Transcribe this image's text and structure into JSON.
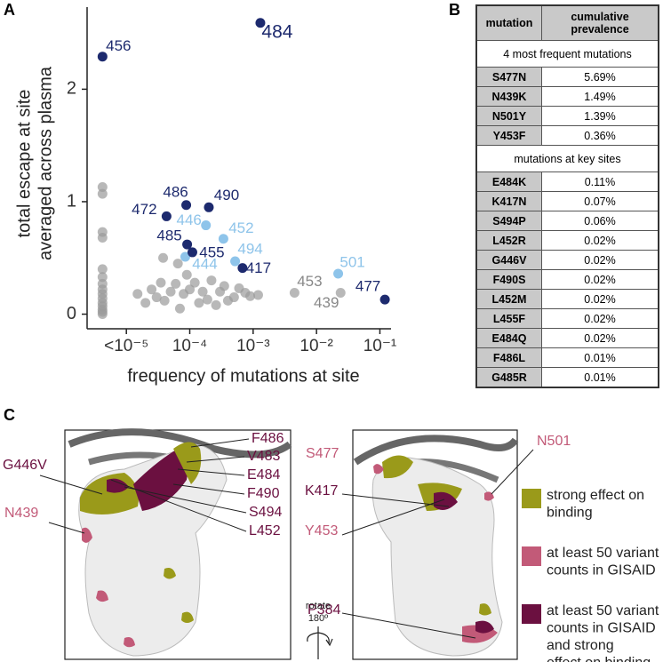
{
  "panel_labels": [
    "A",
    "B",
    "C"
  ],
  "chart_data": {
    "type": "scatter",
    "xlabel": "frequency of mutations at site",
    "ylabel": [
      "total escape at site",
      "averaged across plasma"
    ],
    "xscale": "log",
    "xlim": [
      2.4e-06,
      0.15
    ],
    "ylim": [
      -0.13,
      2.73
    ],
    "xticks": [
      {
        "value": 1e-05,
        "label": "<10⁻⁵"
      },
      {
        "value": 0.0001,
        "label": "10⁻⁴"
      },
      {
        "value": 0.001,
        "label": "10⁻³"
      },
      {
        "value": 0.01,
        "label": "10⁻²"
      },
      {
        "value": 0.1,
        "label": "10⁻¹"
      }
    ],
    "yticks": [
      0,
      1,
      2
    ],
    "series": [
      {
        "color": "#9a9a9a",
        "x": [
          0.0045,
          0.024,
          4.2e-06,
          4.2e-06,
          4.2e-06,
          4.2e-06,
          4.2e-06,
          4.2e-06,
          4.2e-06,
          4.2e-06,
          4.2e-06,
          4.2e-06,
          4.2e-06,
          4.2e-06,
          4.2e-06,
          4.2e-06,
          4.2e-06,
          1.5e-05,
          2e-05,
          2.5e-05,
          3e-05,
          3.5e-05,
          3.8e-05,
          4e-05,
          5e-05,
          6e-05,
          6.5e-05,
          7e-05,
          8e-05,
          9e-05,
          0.0001,
          0.00012,
          0.00014,
          0.00016,
          0.00019,
          0.00022,
          0.00026,
          0.0003,
          0.00035,
          0.0004,
          0.0005,
          0.0006,
          0.00075,
          0.0009,
          0.0012
        ],
        "values": [
          0.19,
          0.19,
          1.13,
          1.07,
          0.73,
          0.68,
          0.4,
          0.33,
          0.27,
          0.22,
          0.18,
          0.14,
          0.1,
          0.07,
          0.04,
          0.02,
          0.0,
          0.18,
          0.1,
          0.22,
          0.15,
          0.28,
          0.5,
          0.12,
          0.2,
          0.27,
          0.45,
          0.05,
          0.18,
          0.35,
          0.22,
          0.28,
          0.1,
          0.2,
          0.13,
          0.3,
          0.08,
          0.2,
          0.25,
          0.12,
          0.15,
          0.23,
          0.19,
          0.16,
          0.17
        ],
        "labels": [
          "453",
          "439",
          null,
          null,
          null,
          null,
          null,
          null,
          null,
          null,
          null,
          null,
          null,
          null,
          null,
          null,
          null,
          null,
          null,
          null,
          null,
          null,
          null,
          null,
          null,
          null,
          null,
          null,
          null,
          null,
          null,
          null,
          null,
          null,
          null,
          null,
          null,
          null,
          null,
          null,
          null,
          null,
          null,
          null,
          null
        ]
      },
      {
        "color": "#8ec4ea",
        "x": [
          0.00018,
          0.00034,
          8.5e-05,
          0.00052,
          0.022
        ],
        "values": [
          0.79,
          0.67,
          0.51,
          0.47,
          0.36
        ],
        "labels": [
          "446",
          "452",
          "444",
          "494",
          "501"
        ]
      },
      {
        "color": "#1d2a6e",
        "x": [
          4.2e-06,
          0.0013,
          8.8e-05,
          0.0002,
          4.3e-05,
          9.1e-05,
          0.00011,
          0.00068,
          0.12
        ],
        "values": [
          2.29,
          2.59,
          0.97,
          0.95,
          0.87,
          0.62,
          0.55,
          0.41,
          0.13
        ],
        "labels": [
          "456",
          "484",
          "486",
          "490",
          "472",
          "485",
          "455",
          "417",
          "477"
        ]
      }
    ]
  },
  "table": {
    "header": [
      "mutation",
      "cumulative prevalence"
    ],
    "sections": [
      {
        "title": "4 most frequent mutations",
        "rows": [
          [
            "S477N",
            "5.69%"
          ],
          [
            "N439K",
            "1.49%"
          ],
          [
            "N501Y",
            "1.39%"
          ],
          [
            "Y453F",
            "0.36%"
          ]
        ]
      },
      {
        "title": "mutations at key sites",
        "rows": [
          [
            "E484K",
            "0.11%"
          ],
          [
            "K417N",
            "0.07%"
          ],
          [
            "S494P",
            "0.06%"
          ],
          [
            "L452R",
            "0.02%"
          ],
          [
            "G446V",
            "0.02%"
          ],
          [
            "F490S",
            "0.02%"
          ],
          [
            "L452M",
            "0.02%"
          ],
          [
            "L455F",
            "0.02%"
          ],
          [
            "E484Q",
            "0.02%"
          ],
          [
            "F486L",
            "0.01%"
          ],
          [
            "G485R",
            "0.01%"
          ]
        ]
      }
    ]
  },
  "structure": {
    "labels": [
      {
        "text": "F486",
        "color": "#6b1040"
      },
      {
        "text": "V483",
        "color": "#6b1040"
      },
      {
        "text": "E484",
        "color": "#6b1040"
      },
      {
        "text": "G446V",
        "color": "#6b1040"
      },
      {
        "text": "F490",
        "color": "#6b1040"
      },
      {
        "text": "S494",
        "color": "#6b1040"
      },
      {
        "text": "L452",
        "color": "#6b1040"
      },
      {
        "text": "N439",
        "color": "#c25a78"
      },
      {
        "text": "S477",
        "color": "#c25a78"
      },
      {
        "text": "N501",
        "color": "#c25a78"
      },
      {
        "text": "K417",
        "color": "#6b1040"
      },
      {
        "text": "Y453",
        "color": "#c25a78"
      },
      {
        "text": "P384",
        "color": "#6b1040"
      }
    ],
    "rotate": [
      "rotate",
      "180º"
    ],
    "legend": [
      {
        "lines": [
          "strong effect on",
          "binding"
        ],
        "color": "#9a9a1a"
      },
      {
        "lines": [
          "at least 50 variant",
          "counts in GISAID"
        ],
        "color": "#c25a78"
      },
      {
        "lines": [
          "at least 50 variant",
          "counts in GISAID",
          "and strong",
          "effect on binding"
        ],
        "color": "#6b1040"
      }
    ]
  }
}
